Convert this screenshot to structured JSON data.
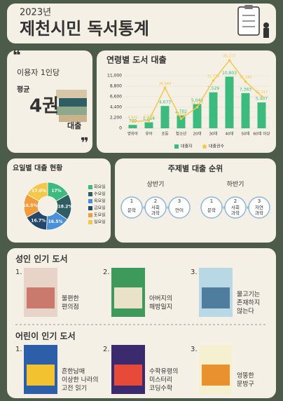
{
  "header": {
    "year": "2023년",
    "title": "제천시민 독서통계"
  },
  "summary": {
    "line1": "이용자 1인당",
    "line2": "평균",
    "value": "4권",
    "line3": "대출"
  },
  "chart_data": [
    {
      "type": "bar",
      "title": "연령별 도서 대출",
      "categories": [
        "영유아",
        "유아",
        "초등",
        "청소년",
        "20대",
        "30대",
        "40대",
        "50대",
        "60대 이상"
      ],
      "ylim": [
        0,
        11000
      ],
      "yticks": [
        0,
        {
          "value": 2200,
          "label": "2,200"
        },
        {
          "value": 4400,
          "label": "4,400"
        },
        {
          "value": 6600,
          "label": "6,600"
        },
        {
          "value": 8800,
          "label": "8,800"
        },
        {
          "value": 11000,
          "label": "11,000"
        }
      ],
      "y2lim": [
        0,
        50000
      ],
      "series": [
        {
          "name": "대출자",
          "color": "#3dba7e",
          "values": [
            709,
            1254,
            4673,
            2702,
            5048,
            7529,
            10803,
            7363,
            5407
          ],
          "value_labels": [
            "709",
            "1,254",
            "4,673",
            "2,702",
            "5,048",
            "7,529",
            "10,803",
            "7,363",
            "5,407"
          ]
        },
        {
          "name": "대출권수",
          "type": "line",
          "axis": "y2",
          "color": "#f5c84c",
          "values": [
            4541,
            5150,
            26944,
            6354,
            14126,
            31779,
            45277,
            31140,
            21317
          ],
          "value_labels": [
            "4,541",
            "5,150",
            "26,944",
            "6,354",
            "14,126",
            "31,779",
            "45,277",
            "31,140",
            "21,317"
          ]
        }
      ]
    },
    {
      "type": "pie",
      "title": "요일별 대출 현황",
      "categories": [
        "화요일",
        "수요일",
        "목요일",
        "금요일",
        "토요일",
        "일요일"
      ],
      "values": [
        17,
        18.2,
        16.5,
        16.7,
        16.5,
        17.0
      ],
      "value_labels": [
        "17%",
        "18.2%",
        "16.5%",
        "16.7%",
        "16.5%",
        "17.0%"
      ],
      "colors": [
        "#3dba7e",
        "#2f5d62",
        "#4a90d9",
        "#25476a",
        "#f39c3c",
        "#f5c84c"
      ]
    }
  ],
  "topics": {
    "title": "주제별 대출 순위",
    "groups": [
      {
        "name": "상반기",
        "items": [
          {
            "rank": 1,
            "lines": [
              "문학"
            ]
          },
          {
            "rank": 2,
            "lines": [
              "사회",
              "과학"
            ]
          },
          {
            "rank": 3,
            "lines": [
              "언어"
            ]
          }
        ]
      },
      {
        "name": "하반기",
        "items": [
          {
            "rank": 1,
            "lines": [
              "문학"
            ]
          },
          {
            "rank": 2,
            "lines": [
              "사회",
              "과학"
            ]
          },
          {
            "rank": 3,
            "lines": [
              "자연",
              "과학"
            ]
          }
        ]
      }
    ]
  },
  "books": [
    {
      "title": "성인 인기 도서",
      "items": [
        {
          "rank": "1.",
          "lines": [
            "불편한",
            "편의점"
          ]
        },
        {
          "rank": "2.",
          "lines": [
            "아버지의",
            "해방일지"
          ]
        },
        {
          "rank": "3.",
          "lines": [
            "물고기는",
            "존재하지",
            "않는다"
          ]
        }
      ]
    },
    {
      "title": "어린이 인기 도서",
      "items": [
        {
          "rank": "1.",
          "lines": [
            "흔한남매",
            "이상한 나라의",
            "고전 읽기"
          ]
        },
        {
          "rank": "2.",
          "lines": [
            "수학유령의",
            "미스터리",
            "코딩수학"
          ]
        },
        {
          "rank": "3.",
          "lines": [
            "엉뚱한",
            "문방구"
          ]
        }
      ]
    }
  ]
}
